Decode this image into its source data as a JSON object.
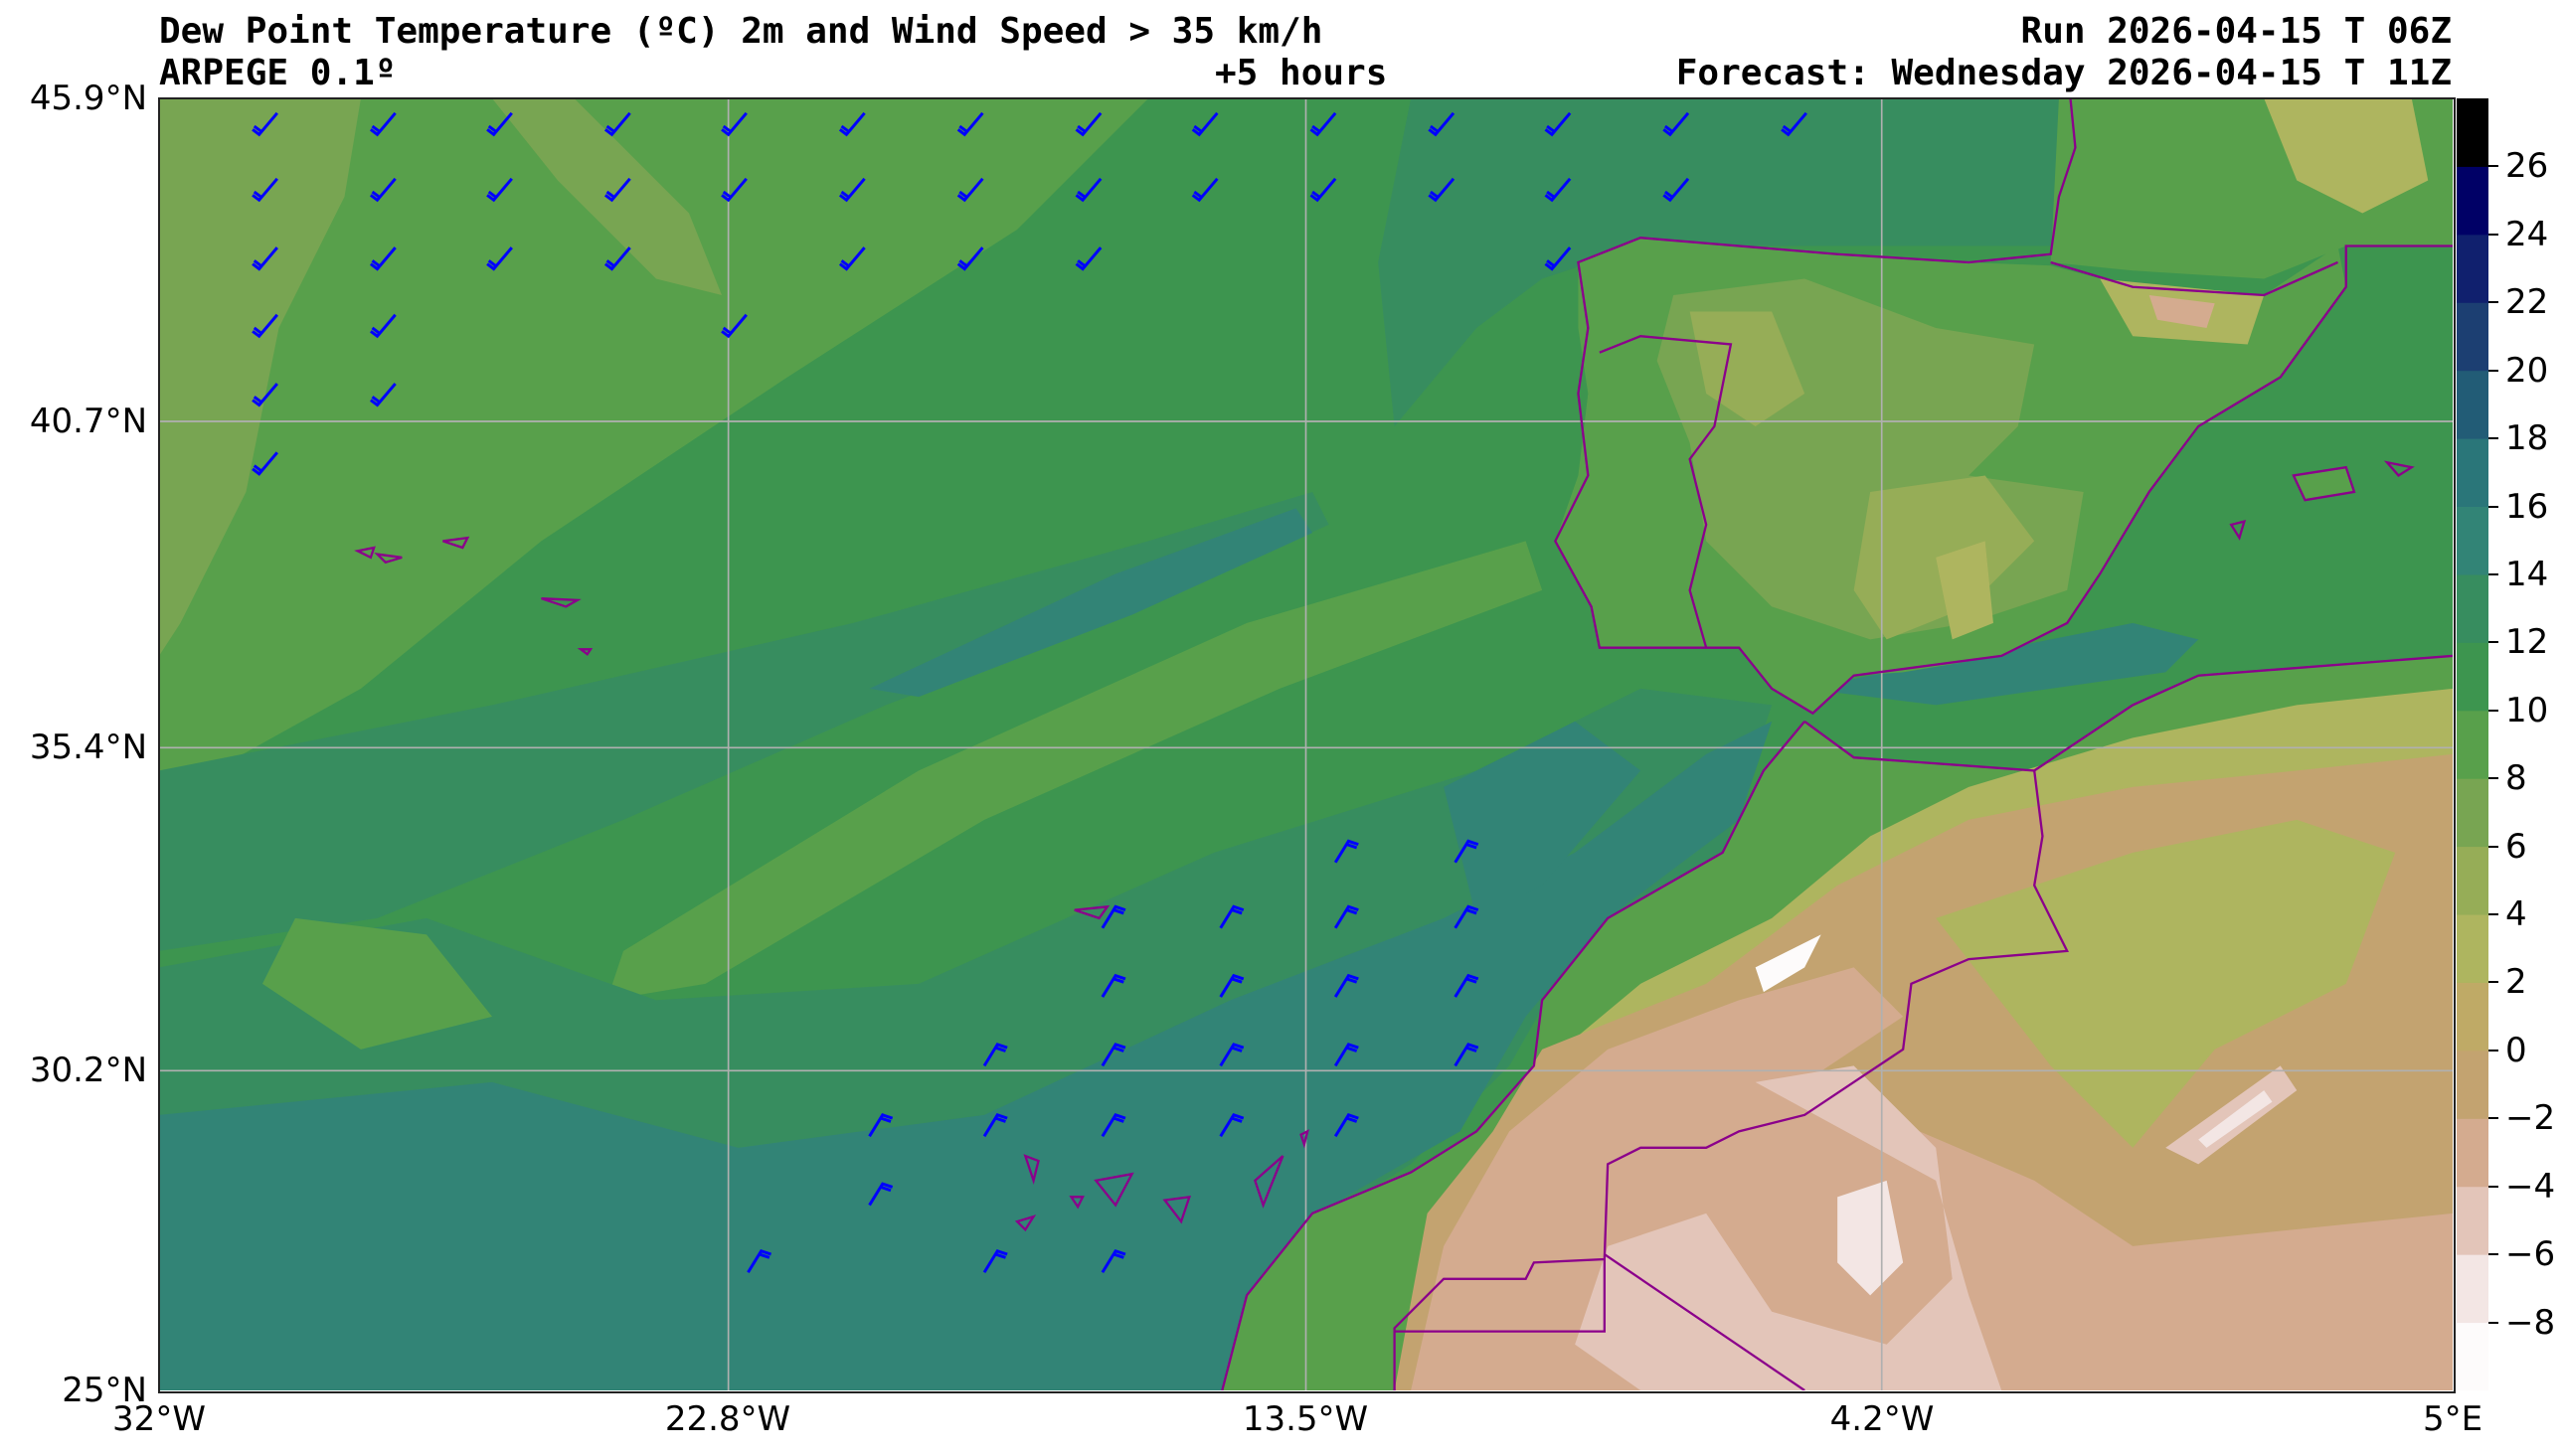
{
  "header": {
    "title": "Dew Point Temperature (ºC) 2m and Wind Speed > 35 km/h",
    "model": "ARPEGE 0.1º",
    "lead_time": "+5 hours",
    "run": "Run 2026-04-15 T 06Z",
    "forecast": "Forecast: Wednesday 2026-04-15 T 11Z"
  },
  "axes": {
    "lat_labels": [
      "45.9°N",
      "40.7°N",
      "35.4°N",
      "30.2°N",
      "25°N"
    ],
    "lon_labels": [
      "32°W",
      "22.8°W",
      "13.5°W",
      "4.2°W",
      "5°E"
    ]
  },
  "colorbar": {
    "levels": [
      -10,
      -8,
      -6,
      -4,
      -2,
      0,
      2,
      4,
      6,
      8,
      10,
      12,
      14,
      16,
      18,
      20,
      22,
      24,
      26,
      28
    ],
    "tick_labels": [
      "−8",
      "−6",
      "−4",
      "−2",
      "0",
      "2",
      "4",
      "6",
      "8",
      "10",
      "12",
      "14",
      "16",
      "18",
      "20",
      "22",
      "24",
      "26"
    ],
    "colors": [
      "#fdfbfb",
      "#f3e6e4",
      "#e3c5b9",
      "#d4ab8f",
      "#c3a370",
      "#bfaa66",
      "#aeb55f",
      "#96ad57",
      "#78a552",
      "#58a04b",
      "#3d954f",
      "#378d5f",
      "#328476",
      "#2a7679",
      "#225c76",
      "#1c3f72",
      "#10206e",
      "#000066",
      "#000000"
    ]
  },
  "colors": {
    "coastline": "#8b008b",
    "wind_barb": "#0000ff",
    "grid": "#b0b0b0"
  }
}
